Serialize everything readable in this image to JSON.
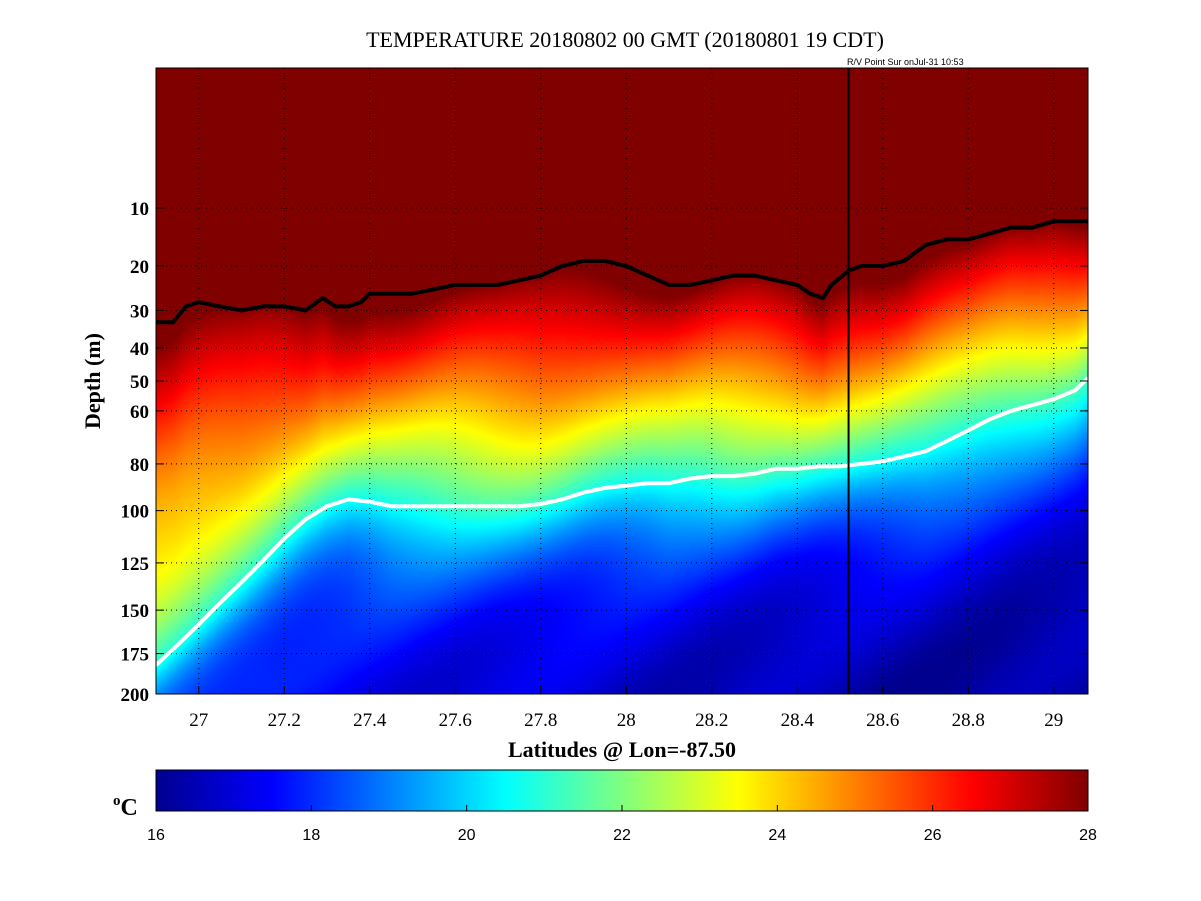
{
  "chart_data": {
    "type": "heatmap",
    "title": "TEMPERATURE 20180802 00 GMT (20180801 19 CDT)",
    "annotation": "R/V Point Sur onJul-31 10:53",
    "xlabel": "Latitudes @ Lon=-87.50",
    "ylabel": "Depth (m)",
    "xlim": [
      26.9,
      29.08
    ],
    "ylim": [
      0,
      200
    ],
    "y_scale": "sqrt",
    "y_reversed": true,
    "grid": true,
    "x_ticks": [
      27,
      27.2,
      27.4,
      27.6,
      27.8,
      28,
      28.2,
      28.4,
      28.6,
      28.8,
      29
    ],
    "x_tick_labels": [
      "27",
      "27.2",
      "27.4",
      "27.6",
      "27.8",
      "28",
      "28.2",
      "28.4",
      "28.6",
      "28.8",
      "29"
    ],
    "y_ticks": [
      10,
      20,
      30,
      40,
      50,
      60,
      80,
      100,
      125,
      150,
      175,
      200
    ],
    "y_tick_labels": [
      "10",
      "20",
      "30",
      "40",
      "50",
      "60",
      "80",
      "100",
      "125",
      "150",
      "175",
      "200"
    ],
    "vertical_marker_lat": 28.52,
    "colorbar": {
      "label": "oC",
      "label_main": "o",
      "label_sub": "C",
      "range": [
        16,
        28
      ],
      "ticks": [
        16,
        18,
        20,
        22,
        24,
        26,
        28
      ],
      "tick_labels": [
        "16",
        "18",
        "20",
        "22",
        "24",
        "26",
        "28"
      ],
      "colormap": "jet"
    },
    "x": [
      26.9,
      27.0,
      27.1,
      27.2,
      27.3,
      27.4,
      27.5,
      27.6,
      27.7,
      27.8,
      27.9,
      28.0,
      28.1,
      28.2,
      28.3,
      28.4,
      28.48,
      28.55,
      28.6,
      28.7,
      28.8,
      28.9,
      29.0,
      29.08
    ],
    "isolines": [
      {
        "color": "#000000",
        "x": [
          26.9,
          26.94,
          26.97,
          27.0,
          27.05,
          27.1,
          27.15,
          27.2,
          27.25,
          27.29,
          27.32,
          27.35,
          27.38,
          27.4,
          27.45,
          27.5,
          27.55,
          27.6,
          27.65,
          27.7,
          27.75,
          27.8,
          27.85,
          27.9,
          27.95,
          28.0,
          28.05,
          28.1,
          28.15,
          28.2,
          28.25,
          28.3,
          28.35,
          28.4,
          28.43,
          28.46,
          28.48,
          28.52,
          28.55,
          28.6,
          28.65,
          28.7,
          28.75,
          28.8,
          28.85,
          28.9,
          28.95,
          29.0,
          29.05,
          29.08
        ],
        "depth": [
          33,
          33,
          29,
          28,
          29,
          30,
          29,
          29,
          30,
          27,
          29,
          29,
          28,
          26,
          26,
          26,
          25,
          24,
          24,
          24,
          23,
          22,
          20,
          19,
          19,
          20,
          22,
          24,
          24,
          23,
          22,
          22,
          23,
          24,
          26,
          27,
          24,
          21,
          20,
          20,
          19,
          16,
          15,
          15,
          14,
          13,
          13,
          12,
          12,
          12
        ]
      },
      {
        "color": "#ffffff",
        "x": [
          26.9,
          26.95,
          27.0,
          27.05,
          27.1,
          27.15,
          27.2,
          27.25,
          27.3,
          27.35,
          27.4,
          27.45,
          27.5,
          27.55,
          27.6,
          27.65,
          27.7,
          27.75,
          27.8,
          27.85,
          27.9,
          27.95,
          28.0,
          28.05,
          28.1,
          28.15,
          28.2,
          28.25,
          28.3,
          28.35,
          28.4,
          28.45,
          28.5,
          28.55,
          28.6,
          28.65,
          28.7,
          28.75,
          28.8,
          28.85,
          28.9,
          28.95,
          29.0,
          29.05,
          29.08
        ],
        "depth": [
          182,
          170,
          158,
          146,
          135,
          124,
          113,
          104,
          98,
          95,
          96,
          98,
          98,
          98,
          98,
          98,
          98,
          98,
          97,
          95,
          92,
          90,
          89,
          88,
          88,
          86,
          85,
          85,
          84,
          82,
          82,
          81,
          81,
          80,
          79,
          77,
          75,
          71,
          67,
          63,
          60,
          58,
          56,
          53,
          49
        ]
      }
    ]
  }
}
